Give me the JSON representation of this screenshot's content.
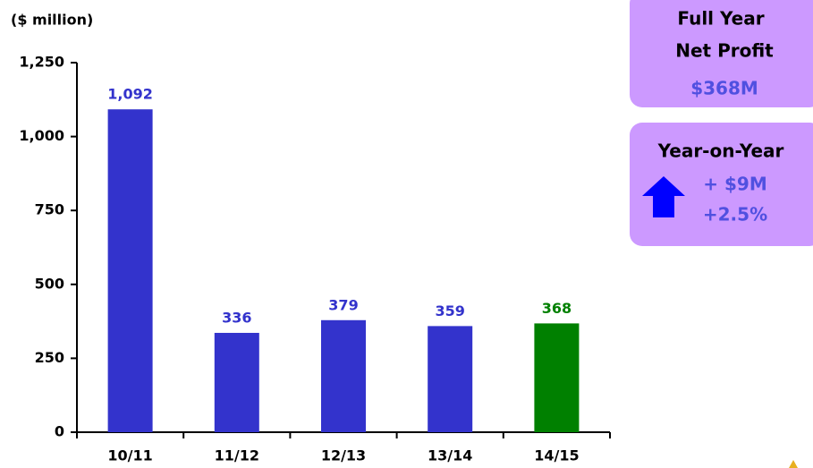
{
  "chart_data": {
    "type": "bar",
    "y_axis_label": "($ million)",
    "categories": [
      "10/11",
      "11/12",
      "12/13",
      "13/14",
      "14/15"
    ],
    "values": [
      1092,
      336,
      379,
      359,
      368
    ],
    "value_labels": [
      "1,092",
      "336",
      "379",
      "359",
      "368"
    ],
    "colors": [
      "#3333cc",
      "#3333cc",
      "#3333cc",
      "#3333cc",
      "#008000"
    ],
    "label_colors": [
      "#3333cc",
      "#3333cc",
      "#3333cc",
      "#3333cc",
      "#008000"
    ],
    "ylim": [
      0,
      1250
    ],
    "yticks": [
      0,
      250,
      500,
      750,
      {
        "value": 1000,
        "label": "1,000"
      },
      {
        "value": 1250,
        "label": "1,250"
      }
    ],
    "grid": false
  },
  "panels": [
    {
      "lines": [
        "Full Year",
        "Net Profit"
      ],
      "value_lines": [
        "$368M"
      ]
    },
    {
      "lines": [
        "Year-on-Year"
      ],
      "value_lines": [
        "+ $9M",
        "+2.5%"
      ]
    }
  ]
}
